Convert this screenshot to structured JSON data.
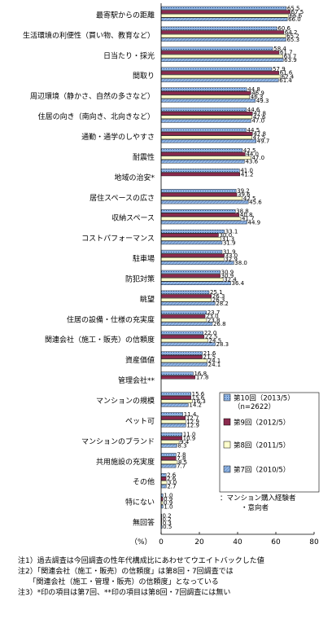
{
  "chart_data": {
    "type": "bar",
    "orientation": "horizontal",
    "xlim": [
      0,
      80
    ],
    "xticks": [
      "0",
      "20",
      "40",
      "60",
      "80"
    ],
    "x_unit": "（%）",
    "grid": false,
    "legend_position": "right",
    "categories": [
      "最寄駅からの距離",
      "生活環境の利便性（買い物、教育など）",
      "日当たり・採光",
      "間取り",
      "周辺環境（静かさ、自然の多さなど）",
      "住居の向き（南向き、北向きなど）",
      "通勤・通学のしやすさ",
      "耐震性",
      "地域の治安*",
      "居住スペースの広さ",
      "収納スペース",
      "コストパフォーマンス",
      "駐車場",
      "防犯対策",
      "眺望",
      "住居の設備・仕様の充実度",
      "関連会社（施工・販売）の信頼度",
      "資産価値",
      "管理会社**",
      "マンションの規模",
      "ペット可",
      "マンションのブランド",
      "共用施設の充実度",
      "その他",
      "特にない",
      "無回答"
    ],
    "series": [
      {
        "name": "第10回（2013/5）",
        "name2": "（n=2622）",
        "color": "#8fb4e3",
        "values": [
          65.5,
          60.6,
          58.4,
          57.9,
          44.8,
          44.6,
          44.5,
          42.5,
          41.0,
          39.2,
          38.8,
          33.1,
          31.9,
          30.9,
          25.1,
          23.7,
          22.0,
          21.6,
          16.8,
          15.6,
          11.4,
          11.0,
          7.8,
          2.6,
          1.0,
          0.2
        ]
      },
      {
        "name": "第9回（2012/5）",
        "name2": "",
        "color": "#8b2a4e",
        "values": [
          67.5,
          64.2,
          61.7,
          61.6,
          46.9,
          47.8,
          47.8,
          44.0,
          41.2,
          39.6,
          40.8,
          30.0,
          33.0,
          30.9,
          26.3,
          23.0,
          22.5,
          21.5,
          17.8,
          15.6,
          12.7,
          10.9,
          7.8,
          2.6,
          0.9,
          0.2
        ]
      },
      {
        "name": "第8回（2011/5）",
        "name2": "",
        "color": "#ffffcc",
        "values": [
          66.6,
          65.2,
          63.7,
          62.4,
          46.3,
          47.6,
          47.5,
          47.0,
          null,
          42.5,
          41.7,
          31.3,
          32.9,
          32.4,
          26.3,
          23.8,
          24.5,
          24.1,
          null,
          16.3,
          12.9,
          9.4,
          8.5,
          3.0,
          0.9,
          0.3
        ]
      },
      {
        "name": "第7回（2010/5）",
        "name2": "",
        "color": "#8fb4e3",
        "values": [
          66.0,
          65.3,
          63.9,
          61.4,
          49.3,
          47.0,
          49.7,
          43.6,
          null,
          45.6,
          44.9,
          31.9,
          38.0,
          36.4,
          28.2,
          26.8,
          28.3,
          24.1,
          null,
          14.2,
          12.9,
          8.3,
          7.7,
          2.7,
          1.0,
          0.5
        ]
      }
    ],
    "annotation": "・マンション購入経験者・意向者"
  },
  "notes": [
    "注1）過去調査は今回調査の性年代構成比にあわせてウエイトバックした値",
    "注2）「関連会社（施工・販売）の信頼度」は第8回・7回調査では",
    "　　「関連会社（施工・管理・販売）の信頼度」となっている",
    "注3）*印の項目は第7回、**印の項目は第8回・7回調査には無い"
  ]
}
